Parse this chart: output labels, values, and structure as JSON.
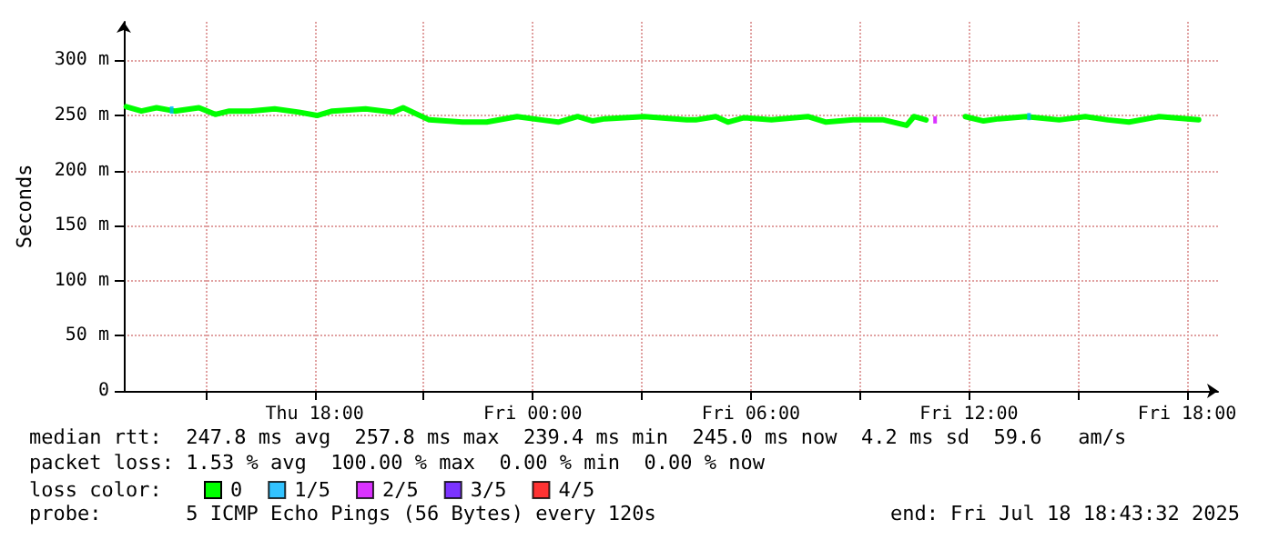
{
  "chart_data": {
    "type": "line",
    "ylabel": "Seconds",
    "legend_title": "loss color:",
    "legend": "bottom",
    "grid": true,
    "marker": "none",
    "line_style": "solid",
    "xlim": [
      "2025-07-17T12:45",
      "2025-07-18T18:51"
    ],
    "xticks": [
      {
        "value": "2025-07-17T15:00",
        "label": null
      },
      {
        "value": "2025-07-17T18:00",
        "label": "Thu 18:00"
      },
      {
        "value": "2025-07-17T21:00",
        "label": null
      },
      {
        "value": "2025-07-18T00:00",
        "label": "Fri 00:00"
      },
      {
        "value": "2025-07-18T03:00",
        "label": null
      },
      {
        "value": "2025-07-18T06:00",
        "label": "Fri 06:00"
      },
      {
        "value": "2025-07-18T09:00",
        "label": null
      },
      {
        "value": "2025-07-18T12:00",
        "label": "Fri 12:00"
      },
      {
        "value": "2025-07-18T15:00",
        "label": null
      },
      {
        "value": "2025-07-18T18:00",
        "label": "Fri 18:00"
      }
    ],
    "ylim": [
      0,
      335
    ],
    "yticks": [
      0,
      {
        "value": 50,
        "label": "50 m"
      },
      {
        "value": 100,
        "label": "100 m"
      },
      {
        "value": 150,
        "label": "150 m"
      },
      {
        "value": 200,
        "label": "200 m"
      },
      {
        "value": 250,
        "label": "250 m"
      },
      {
        "value": 300,
        "label": "300 m"
      }
    ],
    "series": [
      {
        "name": "0",
        "color": "#00ff00",
        "x": [
          "2025-07-17T12:49",
          "2025-07-17T13:14",
          "2025-07-17T13:39",
          "2025-07-17T14:09",
          "2025-07-17T14:49",
          "2025-07-17T15:16",
          "2025-07-17T15:39",
          "2025-07-17T16:14",
          "2025-07-17T16:54",
          "2025-07-17T17:34",
          "2025-07-17T18:04",
          "2025-07-17T18:29",
          "2025-07-17T19:24",
          "2025-07-17T20:09",
          "2025-07-17T20:26",
          "2025-07-17T21:09",
          "2025-07-17T22:04",
          "2025-07-17T22:44",
          "2025-07-17T23:34",
          "2025-07-18T00:14",
          "2025-07-18T00:42",
          "2025-07-18T01:14",
          "2025-07-18T01:39",
          "2025-07-18T01:59",
          "2025-07-18T03:04",
          "2025-07-18T04:14",
          "2025-07-18T04:29",
          "2025-07-18T05:02",
          "2025-07-18T05:22",
          "2025-07-18T05:49",
          "2025-07-18T06:34",
          "2025-07-18T07:34",
          "2025-07-18T08:04",
          "2025-07-18T08:49",
          "2025-07-18T09:39",
          "2025-07-18T10:17",
          "2025-07-18T10:29",
          "2025-07-18T10:49",
          "2025-07-18T11:14",
          "2025-07-18T11:54",
          "2025-07-18T12:24",
          "2025-07-18T12:49",
          "2025-07-18T13:34",
          "2025-07-18T14:29",
          "2025-07-18T15:12",
          "2025-07-18T15:49",
          "2025-07-18T16:24",
          "2025-07-18T17:14",
          "2025-07-18T18:19"
        ],
        "values": [
          258,
          254,
          257,
          254,
          257,
          251,
          254,
          254,
          256,
          253,
          250,
          254,
          256,
          253,
          257,
          246,
          244,
          244,
          249,
          246,
          244,
          249,
          245,
          247,
          249,
          246,
          246,
          249,
          244,
          248,
          246,
          249,
          244,
          246,
          246,
          241,
          249,
          246,
          null,
          249,
          245,
          247,
          249,
          246,
          249,
          246,
          244,
          249,
          246
        ]
      },
      {
        "name": "1/5",
        "type": "scatter",
        "marker": "square",
        "color": "#00b4ff",
        "x": [
          "2025-07-17T14:04",
          "2025-07-18T13:39"
        ],
        "values": [
          255,
          249
        ]
      },
      {
        "name": "2/5",
        "type": "scatter",
        "marker": "square",
        "color": "#d200ff",
        "x": [
          "2025-07-18T11:04"
        ],
        "values": [
          246
        ]
      },
      {
        "name": "3/5",
        "type": "scatter",
        "color": "#5a00ff"
      },
      {
        "name": "4/5",
        "type": "scatter",
        "color": "#ff0000"
      }
    ],
    "annotations": [
      "median rtt:  247.8 ms avg  257.8 ms max  239.4 ms min  245.0 ms now  4.2 ms sd  59.6   am/s",
      "packet loss: 1.53 % avg  100.00 % max  0.00 % min  0.00 % now",
      "probe:       5 ICMP Echo Pings (56 Bytes) every 120s",
      "end: Fri Jul 18 18:43:32 2025"
    ]
  }
}
